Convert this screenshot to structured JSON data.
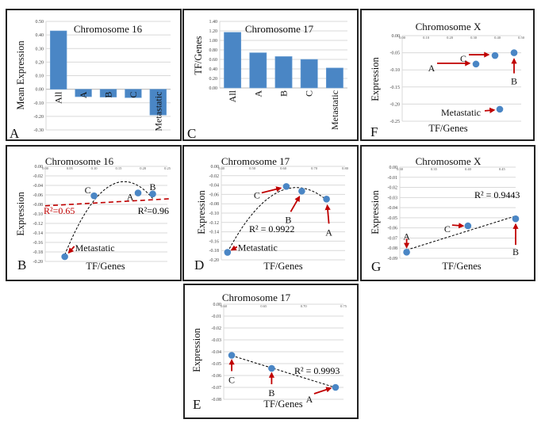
{
  "colors": {
    "marker": "#4a86c5",
    "arrow": "#c00000",
    "trendline": "#000000",
    "secondary_trendline": "#c00000",
    "grid": "#d9d9d9"
  },
  "chart_data": [
    {
      "letter": "A",
      "type": "bar",
      "title": "Chromosome 16",
      "ylabel": "Mean Expression",
      "xlabel": "",
      "categories": [
        "All",
        "A",
        "B",
        "C",
        "Metastatic"
      ],
      "values": [
        0.43,
        -0.055,
        -0.058,
        -0.062,
        -0.19
      ],
      "ylim": [
        -0.3,
        0.5
      ],
      "yticks": [
        "0.50",
        "0.40",
        "0.30",
        "0.20",
        "0.10",
        "0.00",
        "-0.10",
        "-0.20",
        "-0.30"
      ],
      "grid": true
    },
    {
      "letter": "C",
      "type": "bar",
      "title": "Chromosome 17",
      "ylabel": "TF/Genes",
      "xlabel": "",
      "categories": [
        "All",
        "A",
        "B",
        "C",
        "Metastatic"
      ],
      "values": [
        1.17,
        0.74,
        0.66,
        0.6,
        0.42
      ],
      "ylim": [
        0,
        1.4
      ],
      "yticks": [
        "1.40",
        "1.20",
        "1.00",
        "0.80",
        "0.60",
        "0.40",
        "0.20",
        "0.00"
      ],
      "grid": true
    },
    {
      "letter": "F",
      "type": "scatter",
      "title": "Chromosome X",
      "ylabel": "Expression",
      "xlabel": "TF/Genes",
      "xlim": [
        0,
        0.5
      ],
      "ylim": [
        -0.25,
        0
      ],
      "xticks": [
        "0.00",
        "0.10",
        "0.20",
        "0.30",
        "0.40",
        "0.50"
      ],
      "yticks": [
        "0.00",
        "-0.05",
        "-0.10",
        "-0.15",
        "-0.20",
        "-0.25"
      ],
      "points": [
        {
          "label": "A",
          "x": 0.31,
          "y": -0.083
        },
        {
          "label": "C",
          "x": 0.39,
          "y": -0.058
        },
        {
          "label": "B",
          "x": 0.47,
          "y": -0.05
        },
        {
          "label": "Metastatic",
          "x": 0.41,
          "y": -0.215
        }
      ],
      "trendline": null,
      "r2_labels": []
    },
    {
      "letter": "B",
      "type": "scatter",
      "title": "Chromosome 16",
      "ylabel": "Expression",
      "xlabel": "TF/Genes",
      "xlim": [
        0,
        0.25
      ],
      "ylim": [
        -0.2,
        0
      ],
      "xticks": [
        "0.00",
        "0.05",
        "0.10",
        "0.15",
        "0.20",
        "0.25"
      ],
      "yticks": [
        "0.00",
        "-0.02",
        "-0.04",
        "-0.06",
        "-0.08",
        "-0.10",
        "-0.12",
        "-0.14",
        "-0.16",
        "-0.18",
        "-0.20"
      ],
      "points": [
        {
          "label": "Metastatic",
          "x": 0.04,
          "y": -0.19
        },
        {
          "label": "C",
          "x": 0.1,
          "y": -0.062
        },
        {
          "label": "A",
          "x": 0.19,
          "y": -0.056
        },
        {
          "label": "B",
          "x": 0.22,
          "y": -0.058
        }
      ],
      "trendline": "polynomial-2",
      "secondary_trendline": {
        "type": "linear",
        "points": [
          [
            0,
            -0.083
          ],
          [
            0.25,
            -0.068
          ]
        ]
      },
      "r2_labels": [
        {
          "text": "R²=0.65",
          "color": "#c00000"
        },
        {
          "text": "R²=0.96",
          "color": "#000000"
        }
      ]
    },
    {
      "letter": "D",
      "type": "scatter",
      "title": "Chromosome 17",
      "ylabel": "Expression",
      "xlabel": "TF/Genes",
      "xlim": [
        0.4,
        0.8
      ],
      "ylim": [
        -0.2,
        0
      ],
      "xticks": [
        "0.40",
        "0.50",
        "0.60",
        "0.70",
        "0.80"
      ],
      "yticks": [
        "0.00",
        "-0.02",
        "-0.04",
        "-0.06",
        "-0.08",
        "-0.10",
        "-0.12",
        "-0.14",
        "-0.16",
        "-0.18",
        "-0.20"
      ],
      "points": [
        {
          "label": "Metastatic",
          "x": 0.42,
          "y": -0.184
        },
        {
          "label": "C",
          "x": 0.61,
          "y": -0.043
        },
        {
          "label": "B",
          "x": 0.66,
          "y": -0.053
        },
        {
          "label": "A",
          "x": 0.74,
          "y": -0.07
        }
      ],
      "trendline": "polynomial-2",
      "r2_labels": [
        {
          "text": "R² = 0.9922",
          "color": "#000000"
        }
      ]
    },
    {
      "letter": "G",
      "type": "scatter",
      "title": "Chromosome X",
      "ylabel": "Expression",
      "xlabel": "TF/Genes",
      "xlim": [
        0.3,
        0.47
      ],
      "ylim": [
        -0.09,
        0
      ],
      "xticks": [
        "0.30",
        "0.35",
        "0.40",
        "0.45"
      ],
      "yticks": [
        "0.00",
        "-0.01",
        "-0.02",
        "-0.03",
        "-0.04",
        "-0.05",
        "-0.06",
        "-0.07",
        "-0.08",
        "-0.09"
      ],
      "points": [
        {
          "label": "A",
          "x": 0.31,
          "y": -0.084
        },
        {
          "label": "C",
          "x": 0.4,
          "y": -0.058
        },
        {
          "label": "B",
          "x": 0.47,
          "y": -0.051
        }
      ],
      "trendline": "linear",
      "r2_labels": [
        {
          "text": "R² = 0.9443",
          "color": "#000000"
        }
      ]
    },
    {
      "letter": "E",
      "type": "scatter",
      "title": "Chromosome 17",
      "ylabel": "Expression",
      "xlabel": "TF/Genes",
      "xlim": [
        0.6,
        0.75
      ],
      "ylim": [
        -0.08,
        0
      ],
      "xticks": [
        "0.60",
        "0.65",
        "0.70",
        "0.75"
      ],
      "yticks": [
        "0.00",
        "-0.01",
        "-0.02",
        "-0.03",
        "-0.04",
        "-0.05",
        "-0.06",
        "-0.07",
        "-0.08"
      ],
      "points": [
        {
          "label": "C",
          "x": 0.61,
          "y": -0.043
        },
        {
          "label": "B",
          "x": 0.66,
          "y": -0.054
        },
        {
          "label": "A",
          "x": 0.74,
          "y": -0.07
        }
      ],
      "trendline": "linear",
      "r2_labels": [
        {
          "text": "R² = 0.9993",
          "color": "#000000"
        }
      ]
    }
  ]
}
